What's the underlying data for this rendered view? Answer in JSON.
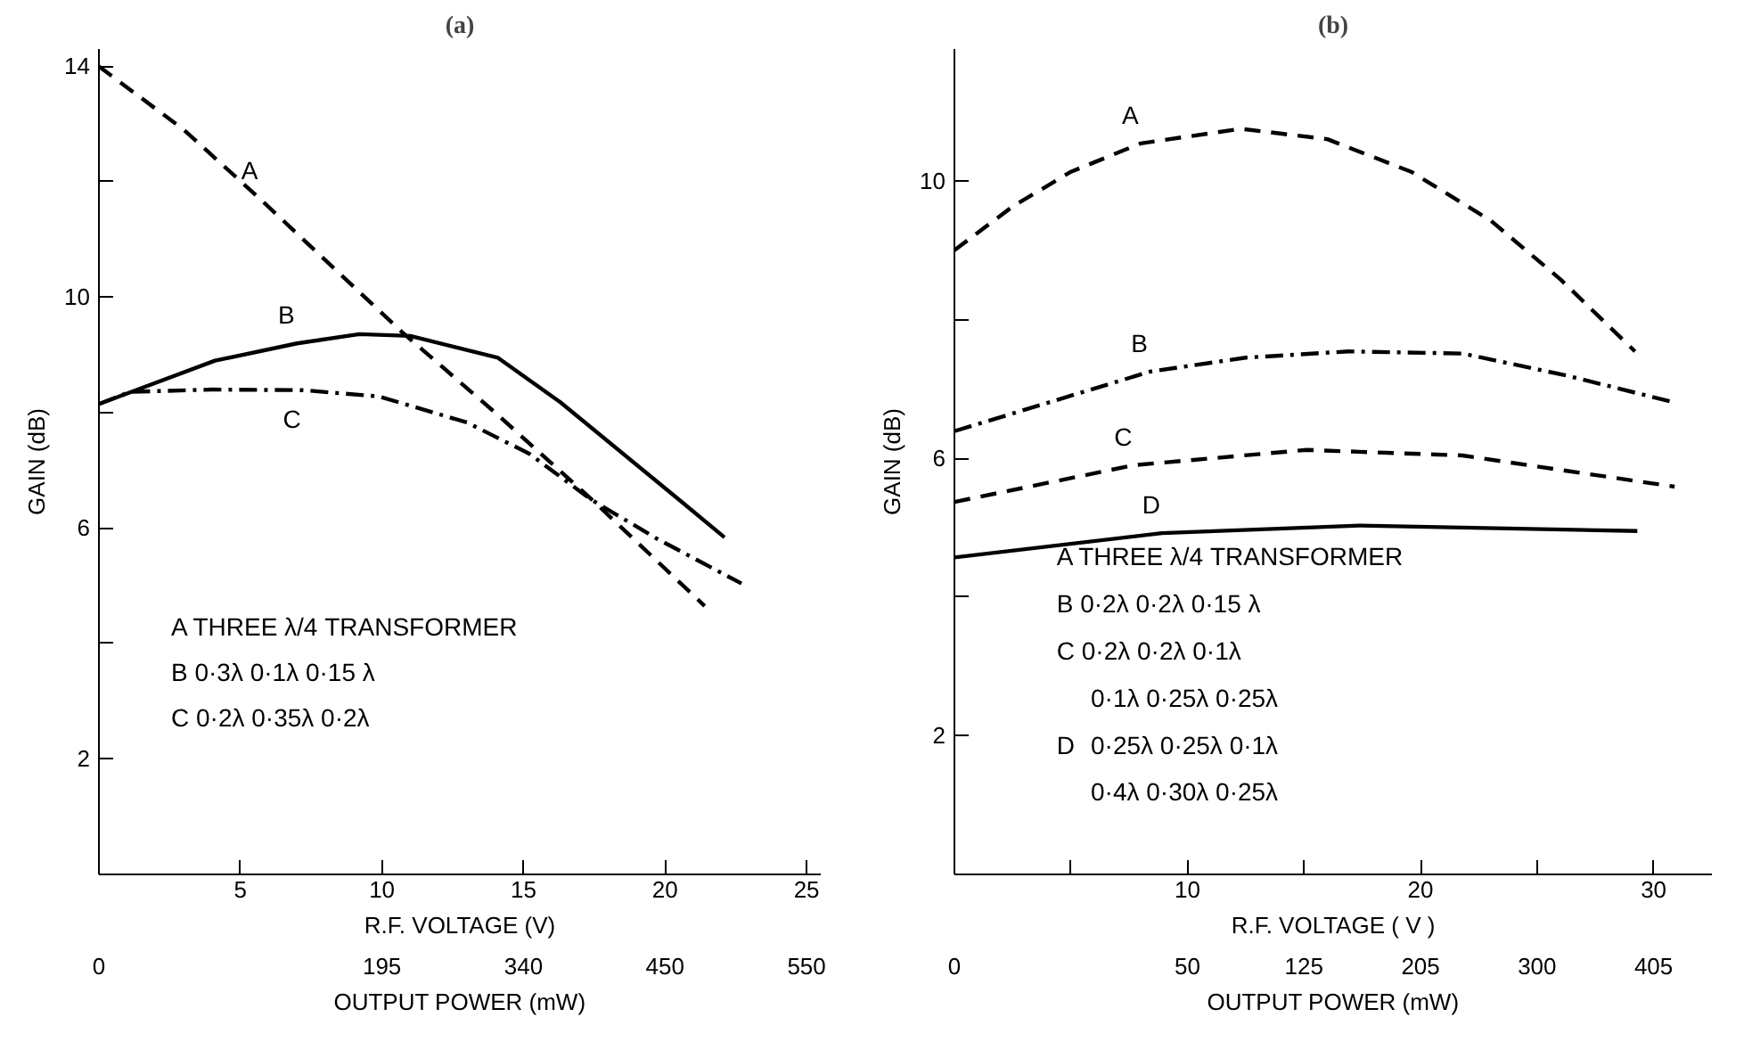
{
  "chart_data": [
    {
      "type": "line",
      "title": "(a)",
      "xlabel": "R.F. VOLTAGE (V)",
      "ylabel": "GAIN (dB)",
      "xlim": [
        0,
        25.5
      ],
      "xticks": [
        5,
        10,
        15,
        20,
        25
      ],
      "ylim": [
        0,
        14.3
      ],
      "yticks": [
        2,
        {
          "value": 4,
          "label": null
        },
        6,
        {
          "value": 8,
          "label": null
        },
        10,
        {
          "value": 12,
          "label": null
        },
        14
      ],
      "series": [
        {
          "name": "A",
          "color": "#000000",
          "line_style": "dashed",
          "x": [
            0,
            3,
            5.7,
            10.7,
            14,
            17.4,
            21.4
          ],
          "values": [
            14,
            12.9,
            11.7,
            9.4,
            8.0,
            6.5,
            4.65
          ]
        },
        {
          "name": "B",
          "color": "#000000",
          "line_style": "solid",
          "x": [
            0,
            4.1,
            7,
            9.2,
            11,
            14.1,
            16.3,
            20.5,
            22.1
          ],
          "values": [
            8.15,
            8.9,
            9.2,
            9.36,
            9.33,
            8.95,
            8.18,
            6.49,
            5.84
          ]
        },
        {
          "name": "C",
          "color": "#000000",
          "line_style": "dashdot",
          "x": [
            0,
            1.1,
            4,
            7.2,
            9.9,
            13,
            15.2,
            17.4,
            19.7,
            22.7
          ],
          "values": [
            8.15,
            8.36,
            8.4,
            8.39,
            8.28,
            7.83,
            7.29,
            6.49,
            5.82,
            5.04
          ]
        }
      ],
      "annotations": [
        "A  THREE λ/4 TRANSFORMER",
        "B  0·3λ   0·1λ   0·15 λ",
        "C  0·2λ   0·35λ  0·2λ",
        "0",
        "195",
        "340",
        "450",
        "550",
        "OUTPUT POWER (mW)"
      ]
    },
    {
      "type": "line",
      "title": "(b)",
      "xlabel": "R.F. VOLTAGE ( V )",
      "ylabel": "GAIN (dB)",
      "xlim": [
        0,
        32.5
      ],
      "xticks": [
        {
          "value": 5,
          "label": null
        },
        10,
        {
          "value": 15,
          "label": null
        },
        20,
        {
          "value": 25,
          "label": null
        },
        30
      ],
      "ylim": [
        0,
        11.9
      ],
      "yticks": [
        2,
        {
          "value": 4,
          "label": null
        },
        6,
        {
          "value": 8,
          "label": null
        },
        10
      ],
      "series": [
        {
          "name": "A",
          "color": "#000000",
          "line_style": "dashed",
          "x": [
            0,
            2.5,
            5,
            8,
            12.3,
            16,
            19.6,
            23,
            26,
            29.2
          ],
          "values": [
            9.0,
            9.63,
            10.13,
            10.54,
            10.75,
            10.6,
            10.13,
            9.43,
            8.58,
            7.54
          ]
        },
        {
          "name": "B",
          "color": "#000000",
          "line_style": "dashdot",
          "x": [
            0,
            8.4,
            12.5,
            16.9,
            21.8,
            26.3,
            30.7
          ],
          "values": [
            6.39,
            7.25,
            7.45,
            7.54,
            7.51,
            7.19,
            6.82
          ]
        },
        {
          "name": "C",
          "color": "#000000",
          "line_style": "dashed",
          "x": [
            0,
            7.7,
            15.1,
            21.8,
            30.9
          ],
          "values": [
            5.37,
            5.9,
            6.12,
            6.04,
            5.59
          ]
        },
        {
          "name": "D",
          "color": "#000000",
          "line_style": "solid",
          "x": [
            0,
            8.9,
            17.4,
            29.3
          ],
          "values": [
            4.57,
            4.92,
            5.03,
            4.95
          ]
        }
      ],
      "annotations": [
        "A  THREE λ/4 TRANSFORMER",
        "B  0·2λ   0·2λ   0·15 λ",
        "C  0·2λ   0·2λ   0·1λ",
        "D",
        "0·1λ   0·25λ   0·25λ",
        "0·25λ  0·25λ   0·1λ",
        "0·4λ   0·30λ   0·25λ",
        "0",
        "50",
        "125",
        "205",
        "300",
        "405",
        "OUTPUT POWER (mW)"
      ]
    }
  ]
}
